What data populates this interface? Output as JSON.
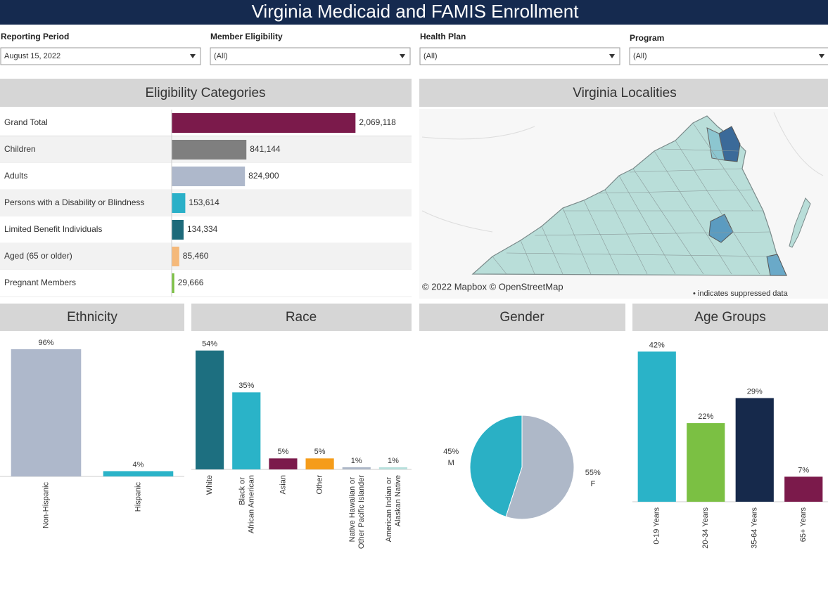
{
  "header": {
    "title": "Virginia Medicaid and FAMIS Enrollment"
  },
  "filters": [
    {
      "label": "Reporting Period",
      "value": "August 15, 2022"
    },
    {
      "label": "Member Eligibility",
      "value": "(All)"
    },
    {
      "label": "Health Plan",
      "value": "(All)"
    },
    {
      "label": "Program",
      "value": "(All)"
    }
  ],
  "map": {
    "title": "Virginia Localities",
    "attribution": "© 2022 Mapbox © OpenStreetMap",
    "note": "• indicates suppressed data"
  },
  "chart_data": [
    {
      "type": "hbar",
      "title": "Eligibility Categories",
      "categories": [
        "Grand Total",
        "Children",
        "Adults",
        "Persons with a Disability or Blindness",
        "Limited Benefit Individuals",
        "Aged (65 or older)",
        "Pregnant Members"
      ],
      "values": [
        2069118,
        841144,
        824900,
        153614,
        134334,
        85460,
        29666
      ],
      "value_labels": [
        "2,069,118",
        "841,144",
        "824,900",
        "153,614",
        "134,334",
        "85,460",
        "29,666"
      ],
      "colors": [
        "#7b1a4b",
        "#7f7f7f",
        "#aeb8cb",
        "#2ab0c8",
        "#1d6a7a",
        "#f5b97a",
        "#7bc043"
      ],
      "xlim": [
        0,
        2700000
      ]
    },
    {
      "type": "bar",
      "title": "Ethnicity",
      "categories": [
        "Non-Hispanic",
        "Hispanic"
      ],
      "values": [
        96,
        4
      ],
      "value_labels": [
        "96%",
        "4%"
      ],
      "colors": [
        "#aeb8cb",
        "#2ab3c8"
      ],
      "ylim": [
        0,
        105
      ]
    },
    {
      "type": "bar",
      "title": "Race",
      "categories": [
        "White",
        "Black or African American",
        "Asian",
        "Other",
        "Native Hawaiian or Other Pacific Islander",
        "American Indian or Alaskan Native"
      ],
      "values": [
        54,
        35,
        5,
        5,
        1,
        1
      ],
      "value_labels": [
        "54%",
        "35%",
        "5%",
        "5%",
        "1%",
        "1%"
      ],
      "colors": [
        "#1d6f80",
        "#2ab3c8",
        "#7b1a4b",
        "#f59c1a",
        "#aeb8c8",
        "#b8e0dc"
      ],
      "ylim": [
        0,
        60
      ]
    },
    {
      "type": "pie",
      "title": "Gender",
      "categories": [
        "M",
        "F"
      ],
      "values": [
        45,
        55
      ],
      "value_labels": [
        "45%",
        "55%"
      ],
      "colors": [
        "#2ab0c5",
        "#aeb8c8"
      ]
    },
    {
      "type": "bar",
      "title": "Age Groups",
      "categories": [
        "0-19 Years",
        "20-34 Years",
        "35-64 Years",
        "65+ Years"
      ],
      "values": [
        42,
        22,
        29,
        7
      ],
      "value_labels": [
        "42%",
        "22%",
        "29%",
        "7%"
      ],
      "colors": [
        "#2ab3c8",
        "#7bc043",
        "#16294b",
        "#7b1a4b"
      ],
      "ylim": [
        0,
        46
      ]
    }
  ]
}
